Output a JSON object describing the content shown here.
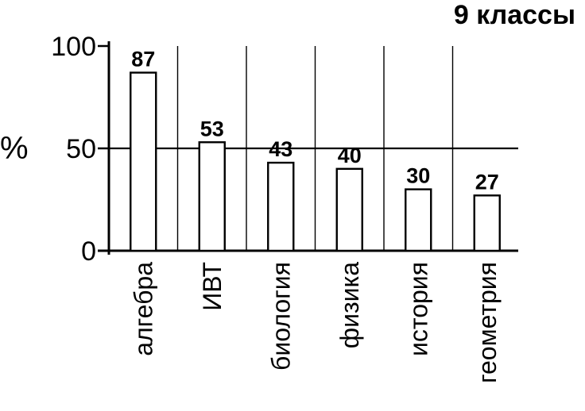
{
  "chart_data": {
    "type": "bar",
    "title": "9 классы",
    "ylabel": "%",
    "xlabel": "",
    "categories": [
      "алгебра",
      "ИВТ",
      "биология",
      "физика",
      "история",
      "геометрия"
    ],
    "values": [
      87,
      53,
      43,
      40,
      30,
      27
    ],
    "data_labels": [
      "87",
      "53",
      "43",
      "40",
      "30",
      "27"
    ],
    "ylim": [
      0,
      100
    ],
    "yticks": [
      {
        "value": 0,
        "label": "0"
      },
      {
        "value": 50,
        "label": "50"
      },
      {
        "value": 100,
        "label": "100"
      }
    ],
    "grid": "vertical separators between categories and a horizontal line at 50",
    "colors": {
      "bar_fill": "#ffffff",
      "stroke": "#000000"
    }
  }
}
